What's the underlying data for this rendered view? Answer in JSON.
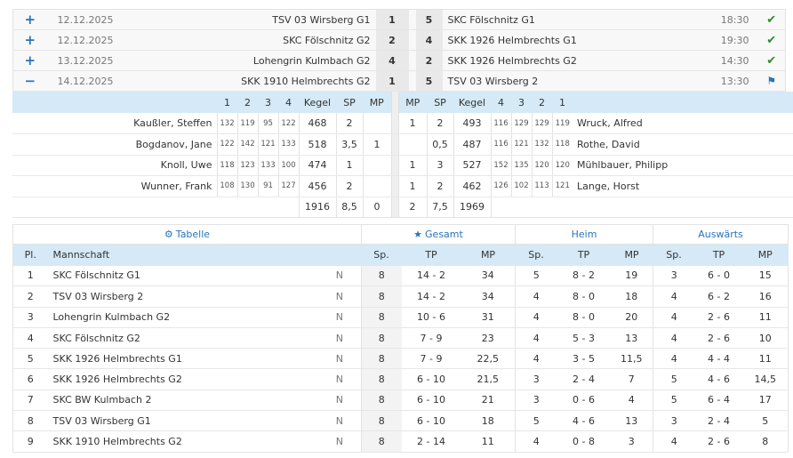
{
  "matches": [
    {
      "toggle": "+",
      "date": "12.12.2025",
      "home": "TSV 03 Wirsberg G1",
      "home_score": "1",
      "away_score": "5",
      "away": "SKC Fölschnitz G1",
      "time": "18:30",
      "status": "check-icon"
    },
    {
      "toggle": "+",
      "date": "12.12.2025",
      "home": "SKC Fölschnitz G2",
      "home_score": "2",
      "away_score": "4",
      "away": "SKK 1926 Helmbrechts G1",
      "time": "19:30",
      "status": "check-icon"
    },
    {
      "toggle": "+",
      "date": "13.12.2025",
      "home": "Lohengrin Kulmbach G2",
      "home_score": "4",
      "away_score": "2",
      "away": "SKK 1926 Helmbrechts G2",
      "time": "14:30",
      "status": "check-icon"
    },
    {
      "toggle": "−",
      "date": "14.12.2025",
      "home": "SKK 1910 Helmbrechts G2",
      "home_score": "1",
      "away_score": "5",
      "away": "TSV 03 Wirsberg 2",
      "time": "13:30",
      "status": "flag-icon"
    }
  ],
  "detail": {
    "header": {
      "l1": "1",
      "l2": "2",
      "l3": "3",
      "l4": "4",
      "l_kegel": "Kegel",
      "l_sp": "SP",
      "l_mp": "MP",
      "r_mp": "MP",
      "r_sp": "SP",
      "r_kegel": "Kegel",
      "r4": "4",
      "r3": "3",
      "r2": "2",
      "r1": "1"
    },
    "players": [
      {
        "home": "Kaußler, Steffen",
        "h1": "132",
        "h2": "119",
        "h3": "95",
        "h4": "122",
        "hk": "468",
        "hsp": "2",
        "hmp": "",
        "amp": "1",
        "asp": "2",
        "ak": "493",
        "a4": "116",
        "a3": "129",
        "a2": "129",
        "a1": "119",
        "away": "Wruck, Alfred"
      },
      {
        "home": "Bogdanov, Jane",
        "h1": "122",
        "h2": "142",
        "h3": "121",
        "h4": "133",
        "hk": "518",
        "hsp": "3,5",
        "hmp": "1",
        "amp": "",
        "asp": "0,5",
        "ak": "487",
        "a4": "116",
        "a3": "121",
        "a2": "132",
        "a1": "118",
        "away": "Rothe, David"
      },
      {
        "home": "Knoll, Uwe",
        "h1": "118",
        "h2": "123",
        "h3": "133",
        "h4": "100",
        "hk": "474",
        "hsp": "1",
        "hmp": "",
        "amp": "1",
        "asp": "3",
        "ak": "527",
        "a4": "152",
        "a3": "135",
        "a2": "120",
        "a1": "120",
        "away": "Mühlbauer, Philipp"
      },
      {
        "home": "Wunner, Frank",
        "h1": "108",
        "h2": "130",
        "h3": "91",
        "h4": "127",
        "hk": "456",
        "hsp": "2",
        "hmp": "",
        "amp": "1",
        "asp": "2",
        "ak": "462",
        "a4": "126",
        "a3": "102",
        "a2": "113",
        "a1": "121",
        "away": "Lange, Horst"
      }
    ],
    "totals": {
      "hk": "1916",
      "hsp": "8,5",
      "hmp": "0",
      "amp": "2",
      "asp": "7,5",
      "ak": "1969"
    }
  },
  "standings": {
    "groups": {
      "tabelle": "Tabelle",
      "gesamt": "Gesamt",
      "heim": "Heim",
      "auswaerts": "Auswärts"
    },
    "header": {
      "pl": "Pl.",
      "team": "Mannschaft",
      "sp": "Sp.",
      "tp": "TP",
      "mp": "MP"
    },
    "rows": [
      {
        "pl": "1",
        "team": "SKC Fölschnitz G1",
        "n": "N",
        "g_sp": "8",
        "g_tp": "14 - 2",
        "g_mp": "34",
        "h_sp": "5",
        "h_tp": "8 - 2",
        "h_mp": "19",
        "a_sp": "3",
        "a_tp": "6 - 0",
        "a_mp": "15"
      },
      {
        "pl": "2",
        "team": "TSV 03 Wirsberg 2",
        "n": "N",
        "g_sp": "8",
        "g_tp": "14 - 2",
        "g_mp": "34",
        "h_sp": "4",
        "h_tp": "8 - 0",
        "h_mp": "18",
        "a_sp": "4",
        "a_tp": "6 - 2",
        "a_mp": "16"
      },
      {
        "pl": "3",
        "team": "Lohengrin Kulmbach G2",
        "n": "N",
        "g_sp": "8",
        "g_tp": "10 - 6",
        "g_mp": "31",
        "h_sp": "4",
        "h_tp": "8 - 0",
        "h_mp": "20",
        "a_sp": "4",
        "a_tp": "2 - 6",
        "a_mp": "11"
      },
      {
        "pl": "4",
        "team": "SKC Fölschnitz G2",
        "n": "N",
        "g_sp": "8",
        "g_tp": "7 - 9",
        "g_mp": "23",
        "h_sp": "4",
        "h_tp": "5 - 3",
        "h_mp": "13",
        "a_sp": "4",
        "a_tp": "2 - 6",
        "a_mp": "10"
      },
      {
        "pl": "5",
        "team": "SKK 1926 Helmbrechts G1",
        "n": "N",
        "g_sp": "8",
        "g_tp": "7 - 9",
        "g_mp": "22,5",
        "h_sp": "4",
        "h_tp": "3 - 5",
        "h_mp": "11,5",
        "a_sp": "4",
        "a_tp": "4 - 4",
        "a_mp": "11"
      },
      {
        "pl": "6",
        "team": "SKK 1926 Helmbrechts G2",
        "n": "N",
        "g_sp": "8",
        "g_tp": "6 - 10",
        "g_mp": "21,5",
        "h_sp": "3",
        "h_tp": "2 - 4",
        "h_mp": "7",
        "a_sp": "5",
        "a_tp": "4 - 6",
        "a_mp": "14,5"
      },
      {
        "pl": "7",
        "team": "SKC BW Kulmbach 2",
        "n": "N",
        "g_sp": "8",
        "g_tp": "6 - 10",
        "g_mp": "21",
        "h_sp": "3",
        "h_tp": "0 - 6",
        "h_mp": "4",
        "a_sp": "5",
        "a_tp": "6 - 4",
        "a_mp": "17"
      },
      {
        "pl": "8",
        "team": "TSV 03 Wirsberg G1",
        "n": "N",
        "g_sp": "8",
        "g_tp": "6 - 10",
        "g_mp": "18",
        "h_sp": "5",
        "h_tp": "4 - 6",
        "h_mp": "13",
        "a_sp": "3",
        "a_tp": "2 - 4",
        "a_mp": "5"
      },
      {
        "pl": "9",
        "team": "SKK 1910 Helmbrechts G2",
        "n": "N",
        "g_sp": "8",
        "g_tp": "2 - 14",
        "g_mp": "11",
        "h_sp": "4",
        "h_tp": "0 - 8",
        "h_mp": "3",
        "a_sp": "4",
        "a_tp": "2 - 6",
        "a_mp": "8"
      }
    ]
  }
}
